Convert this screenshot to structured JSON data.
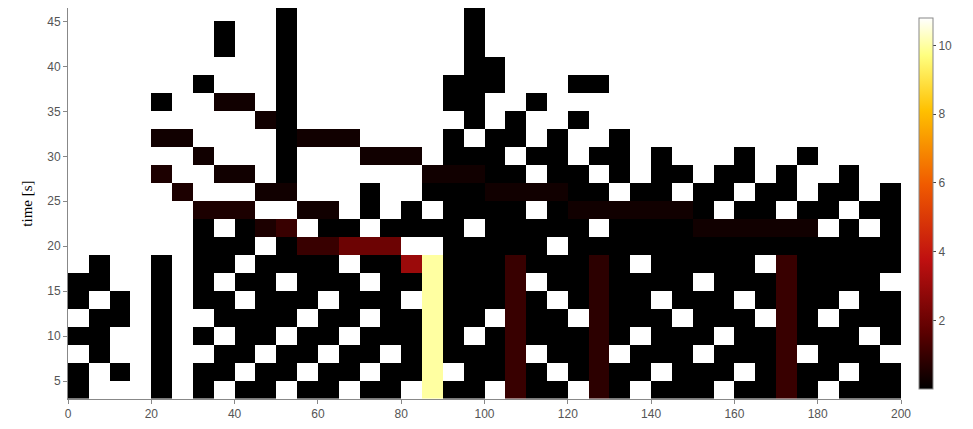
{
  "chart_data": {
    "type": "heatmap",
    "y_label": "time [s]",
    "grid": false,
    "x": [
      2.5,
      7.5,
      12.5,
      17.5,
      22.5,
      27.5,
      32.5,
      37.5,
      42.5,
      47.5,
      52.5,
      57.5,
      62.5,
      67.5,
      72.5,
      77.5,
      82.5,
      87.5,
      92.5,
      97.5,
      102.5,
      107.5,
      112.5,
      117.5,
      122.5,
      127.5,
      132.5,
      137.5,
      142.5,
      147.5,
      152.5,
      157.5,
      162.5,
      167.5,
      172.5,
      177.5,
      182.5,
      187.5,
      192.5,
      197.5
    ],
    "y": [
      4,
      6,
      8,
      10,
      12,
      14,
      16,
      18,
      20,
      22,
      24,
      26,
      28,
      30,
      32,
      34,
      36,
      38,
      40,
      42,
      44,
      46
    ],
    "z": [
      [
        0,
        null,
        null,
        null,
        0,
        null,
        0,
        null,
        0,
        0,
        null,
        0,
        0,
        null,
        0,
        0,
        null,
        10,
        0,
        0,
        null,
        1,
        0,
        0,
        null,
        0.8,
        0,
        null,
        0,
        0,
        0,
        null,
        0,
        0,
        1,
        0,
        null,
        0,
        0,
        0
      ],
      [
        0,
        null,
        0,
        null,
        0,
        null,
        0,
        0,
        null,
        0,
        0,
        null,
        0,
        0,
        null,
        0,
        0,
        10,
        null,
        0,
        0,
        1,
        0,
        null,
        0,
        0.8,
        0,
        0,
        null,
        0,
        0,
        0,
        null,
        0,
        1,
        0,
        0,
        null,
        0,
        0
      ],
      [
        null,
        0,
        null,
        null,
        0,
        null,
        null,
        0,
        0,
        null,
        0,
        0,
        null,
        0,
        0,
        null,
        0,
        10,
        0,
        0,
        0,
        1,
        null,
        0,
        0,
        0.8,
        null,
        0,
        0,
        0,
        null,
        0,
        0,
        0,
        1,
        null,
        0,
        0,
        0,
        null
      ],
      [
        0,
        0,
        null,
        null,
        0,
        null,
        0,
        null,
        0,
        0,
        null,
        0,
        0,
        null,
        0,
        0,
        0,
        10,
        0,
        null,
        0,
        1,
        0,
        0,
        0,
        0.8,
        0,
        null,
        0,
        0,
        0,
        null,
        0,
        0,
        1,
        0,
        0,
        0,
        null,
        0
      ],
      [
        null,
        0,
        0,
        null,
        0,
        null,
        null,
        0,
        0,
        0,
        0,
        null,
        0,
        0,
        null,
        0,
        0,
        10,
        0,
        0,
        null,
        1,
        0,
        0,
        null,
        0.8,
        0,
        0,
        0,
        null,
        0,
        0,
        0,
        null,
        1,
        0,
        null,
        0,
        0,
        0
      ],
      [
        0,
        null,
        0,
        null,
        0,
        null,
        0,
        0,
        null,
        0,
        0,
        0,
        null,
        0,
        0,
        0,
        null,
        10,
        0,
        0,
        0,
        1,
        0,
        null,
        0,
        0.8,
        0,
        0,
        null,
        0,
        0,
        0,
        null,
        0,
        1,
        0,
        0,
        null,
        0,
        0
      ],
      [
        0,
        0,
        null,
        null,
        0,
        null,
        0,
        null,
        0,
        0,
        null,
        0,
        0,
        0,
        null,
        0,
        0,
        10,
        0,
        0,
        0,
        1,
        null,
        0,
        0,
        0.8,
        0,
        0,
        0,
        0,
        null,
        0,
        0,
        0,
        1,
        0,
        0,
        0,
        0,
        null
      ],
      [
        null,
        0,
        null,
        null,
        0,
        null,
        0,
        0,
        null,
        0,
        0,
        0,
        0,
        null,
        0,
        0,
        3,
        10,
        0,
        0,
        0,
        1,
        0,
        0,
        0,
        0.8,
        0,
        null,
        0,
        0,
        0,
        0,
        0,
        null,
        1,
        0,
        0,
        0,
        0,
        0
      ],
      [
        null,
        null,
        null,
        null,
        null,
        null,
        0,
        0,
        0,
        null,
        0,
        1,
        1,
        2,
        2,
        2,
        null,
        null,
        0,
        0,
        0,
        0,
        0,
        null,
        0,
        0,
        0,
        0,
        0,
        0,
        0,
        0,
        0,
        0,
        0,
        0,
        0,
        0,
        0,
        0
      ],
      [
        null,
        null,
        null,
        null,
        null,
        null,
        0,
        null,
        0,
        0.5,
        1,
        null,
        0,
        0,
        null,
        0,
        0,
        0,
        0,
        null,
        0,
        0,
        0,
        0,
        0,
        null,
        0,
        0,
        0,
        0,
        0.3,
        0.3,
        0.3,
        0.3,
        0.3,
        0.3,
        null,
        0,
        null,
        0
      ],
      [
        null,
        null,
        null,
        null,
        null,
        null,
        0.5,
        0.5,
        0.5,
        null,
        null,
        0.3,
        0.3,
        null,
        0,
        null,
        0,
        null,
        0,
        0,
        0,
        0,
        null,
        0,
        0.3,
        0.3,
        0.3,
        0.3,
        0.3,
        0.3,
        0,
        null,
        0,
        0,
        null,
        0,
        0,
        null,
        0,
        0
      ],
      [
        null,
        null,
        null,
        null,
        null,
        0.5,
        null,
        null,
        null,
        0.3,
        0.3,
        null,
        null,
        null,
        0,
        null,
        null,
        0,
        0,
        0,
        0.3,
        0.3,
        0.3,
        0.3,
        0,
        0,
        null,
        0,
        0,
        null,
        0,
        0,
        null,
        0,
        0,
        null,
        0,
        0,
        null,
        0
      ],
      [
        null,
        null,
        null,
        null,
        0.5,
        null,
        null,
        0.3,
        0.3,
        null,
        0,
        null,
        null,
        null,
        null,
        null,
        null,
        0.3,
        0.3,
        0.3,
        0,
        0,
        null,
        0,
        0,
        null,
        0,
        null,
        0,
        0,
        null,
        0,
        0,
        null,
        0,
        null,
        null,
        0,
        null,
        null
      ],
      [
        null,
        null,
        null,
        null,
        null,
        null,
        0.3,
        null,
        null,
        null,
        0,
        null,
        null,
        null,
        0.3,
        0.3,
        0.3,
        null,
        0,
        0,
        0,
        null,
        0,
        0,
        null,
        0,
        0,
        null,
        0,
        null,
        null,
        null,
        0,
        null,
        null,
        0,
        null,
        null,
        null,
        null
      ],
      [
        null,
        null,
        null,
        null,
        0.3,
        0.3,
        null,
        null,
        null,
        null,
        0,
        0.3,
        0.3,
        0.3,
        null,
        null,
        null,
        null,
        0,
        null,
        0,
        0,
        null,
        0,
        null,
        null,
        0,
        null,
        null,
        null,
        null,
        null,
        null,
        null,
        null,
        null,
        null,
        null,
        null,
        null
      ],
      [
        null,
        null,
        null,
        null,
        null,
        null,
        null,
        null,
        null,
        0.3,
        0,
        null,
        null,
        null,
        null,
        null,
        null,
        null,
        null,
        0,
        null,
        0,
        null,
        null,
        0,
        null,
        null,
        null,
        null,
        null,
        null,
        null,
        null,
        null,
        null,
        null,
        null,
        null,
        null,
        null
      ],
      [
        null,
        null,
        null,
        null,
        0,
        null,
        null,
        0.3,
        0.3,
        null,
        0,
        null,
        null,
        null,
        null,
        null,
        null,
        null,
        0,
        0,
        null,
        null,
        0,
        null,
        null,
        null,
        null,
        null,
        null,
        null,
        null,
        null,
        null,
        null,
        null,
        null,
        null,
        null,
        null,
        null
      ],
      [
        null,
        null,
        null,
        null,
        null,
        null,
        0,
        null,
        null,
        null,
        0,
        null,
        null,
        null,
        null,
        null,
        null,
        null,
        0,
        0,
        0,
        null,
        null,
        null,
        0,
        0,
        null,
        null,
        null,
        null,
        null,
        null,
        null,
        null,
        null,
        null,
        null,
        null,
        null,
        null
      ],
      [
        null,
        null,
        null,
        null,
        null,
        null,
        null,
        null,
        null,
        null,
        0,
        null,
        null,
        null,
        null,
        null,
        null,
        null,
        null,
        0,
        0,
        null,
        null,
        null,
        null,
        null,
        null,
        null,
        null,
        null,
        null,
        null,
        null,
        null,
        null,
        null,
        null,
        null,
        null,
        null
      ],
      [
        null,
        null,
        null,
        null,
        null,
        null,
        null,
        0,
        null,
        null,
        0,
        null,
        null,
        null,
        null,
        null,
        null,
        null,
        null,
        0,
        null,
        null,
        null,
        null,
        null,
        null,
        null,
        null,
        null,
        null,
        null,
        null,
        null,
        null,
        null,
        null,
        null,
        null,
        null,
        null
      ],
      [
        null,
        null,
        null,
        null,
        null,
        null,
        null,
        0,
        null,
        null,
        0,
        null,
        null,
        null,
        null,
        null,
        null,
        null,
        null,
        0,
        null,
        null,
        null,
        null,
        null,
        null,
        null,
        null,
        null,
        null,
        null,
        null,
        null,
        null,
        null,
        null,
        null,
        null,
        null,
        null
      ],
      [
        null,
        null,
        null,
        null,
        null,
        null,
        null,
        null,
        null,
        null,
        0,
        null,
        null,
        null,
        null,
        null,
        null,
        null,
        null,
        0,
        null,
        null,
        null,
        null,
        null,
        null,
        null,
        null,
        null,
        null,
        null,
        null,
        null,
        null,
        null,
        null,
        null,
        null,
        null,
        null
      ]
    ],
    "xlim": [
      0,
      200
    ],
    "xticks": [
      0,
      20,
      40,
      60,
      80,
      100,
      120,
      140,
      160,
      180,
      200
    ],
    "ylim": [
      3,
      46.5
    ],
    "yticks": [
      5,
      10,
      15,
      20,
      25,
      30,
      35,
      40,
      45
    ],
    "colorbar_range": [
      0,
      10.8
    ],
    "colorbar_ticks": [
      2,
      4,
      6,
      8,
      10
    ]
  }
}
